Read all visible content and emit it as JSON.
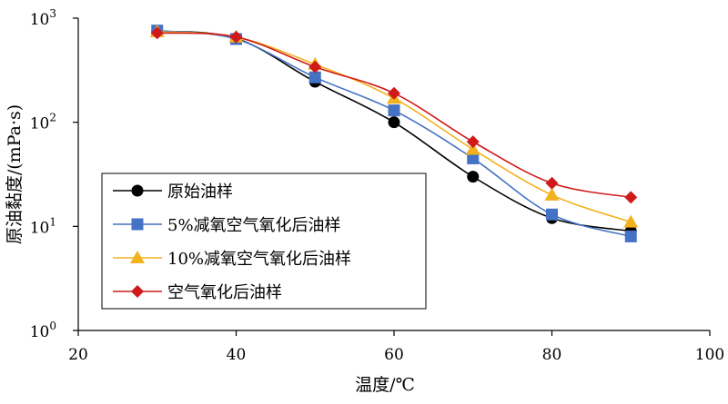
{
  "chart_data": {
    "type": "line",
    "xlabel": "温度/℃",
    "ylabel": "原油黏度/(mPa·s)",
    "xlim": [
      20,
      100
    ],
    "ylim": [
      1,
      1000
    ],
    "yscale": "log",
    "xticks": [
      "20",
      "40",
      "60",
      "80",
      "100"
    ],
    "yticks": [
      {
        "base": "10",
        "exp": "0"
      },
      {
        "base": "10",
        "exp": "1"
      },
      {
        "base": "10",
        "exp": "2"
      },
      {
        "base": "10",
        "exp": "3"
      }
    ],
    "grid": false,
    "legend_position": "center-left",
    "x": [
      30,
      40,
      50,
      60,
      70,
      80,
      90
    ],
    "series": [
      {
        "name": "原始油样",
        "color": "#000000",
        "marker": "circle",
        "values": [
          750,
          640,
          245,
          100,
          30,
          12,
          9
        ]
      },
      {
        "name": "5%减氧空气氧化后油样",
        "color": "#4472C4",
        "marker": "square",
        "values": [
          760,
          630,
          270,
          130,
          45,
          13,
          8
        ]
      },
      {
        "name": "10%减氧空气氧化后油样",
        "color": "#F2B21E",
        "marker": "triangle",
        "values": [
          740,
          660,
          360,
          170,
          55,
          20,
          11
        ]
      },
      {
        "name": "空气氧化后油样",
        "color": "#D01A1A",
        "marker": "diamond",
        "values": [
          720,
          660,
          340,
          190,
          65,
          26,
          19
        ]
      }
    ]
  }
}
